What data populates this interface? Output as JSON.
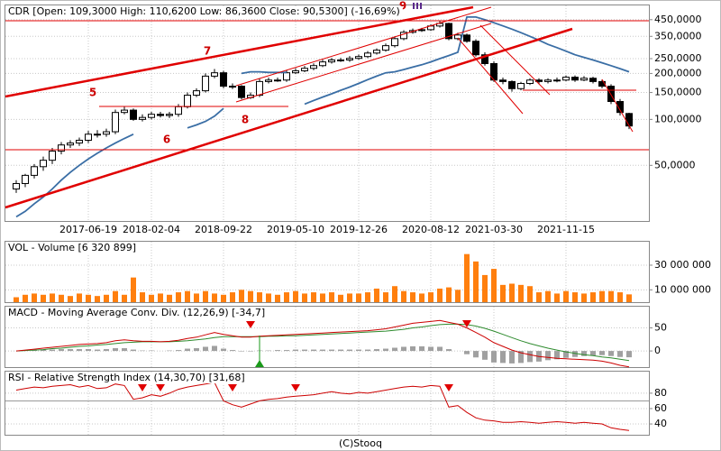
{
  "chart_data": [
    {
      "type": "candlestick",
      "title": "CDR [Open: 109,3000  High: 110,6200  Low: 86,3600  Close: 90,5300] (-16,69%)",
      "categories": [
        null,
        null,
        null,
        null,
        null,
        null,
        null,
        null,
        "2017-06-19",
        null,
        null,
        null,
        null,
        null,
        null,
        "2018-02-04",
        null,
        null,
        null,
        null,
        null,
        null,
        null,
        "2018-09-22",
        null,
        null,
        null,
        null,
        null,
        null,
        null,
        "2019-05-10",
        null,
        null,
        null,
        null,
        null,
        null,
        "2019-12-26",
        null,
        null,
        null,
        null,
        null,
        null,
        null,
        "2020-08-12",
        null,
        null,
        null,
        null,
        null,
        null,
        "2021-03-30",
        null,
        null,
        null,
        null,
        null,
        null,
        null,
        "2021-11-15",
        null,
        null,
        null,
        null,
        null,
        null,
        null
      ],
      "open": [
        35,
        38,
        43,
        49,
        54,
        62,
        68,
        70,
        73,
        80,
        80,
        83,
        111,
        115,
        100,
        103,
        108,
        106,
        108,
        121,
        144,
        154,
        192,
        202,
        165,
        165,
        139,
        144,
        177,
        181,
        181,
        202,
        208,
        216,
        225,
        238,
        245,
        245,
        251,
        258,
        272,
        284,
        304,
        338,
        372,
        382,
        387,
        409,
        425,
        338,
        357,
        325,
        265,
        232,
        181,
        177,
        159,
        172,
        181,
        177,
        181,
        181,
        189,
        181,
        186,
        177,
        165,
        131,
        109.3
      ],
      "high": [
        40,
        44,
        51,
        57,
        65,
        71,
        73,
        76,
        84,
        85,
        87,
        116,
        121,
        118,
        108,
        112,
        112,
        112,
        126,
        150,
        160,
        200,
        214,
        208,
        172,
        168,
        150,
        184,
        188,
        188,
        210,
        216,
        224,
        233,
        246,
        253,
        253,
        260,
        266,
        280,
        292,
        314,
        350,
        384,
        394,
        398,
        420,
        440,
        430,
        370,
        365,
        335,
        275,
        240,
        188,
        180,
        176,
        186,
        186,
        186,
        188,
        194,
        194,
        192,
        190,
        182,
        170,
        136,
        110.62
      ],
      "low": [
        33,
        36,
        41,
        46,
        51,
        59,
        65,
        67,
        70,
        76,
        77,
        80,
        108,
        98,
        97,
        100,
        103,
        102,
        104,
        118,
        140,
        150,
        186,
        160,
        158,
        135,
        136,
        140,
        172,
        176,
        176,
        198,
        204,
        210,
        220,
        232,
        238,
        238,
        246,
        252,
        266,
        278,
        296,
        330,
        364,
        374,
        380,
        400,
        330,
        330,
        318,
        258,
        225,
        176,
        170,
        152,
        155,
        168,
        170,
        172,
        175,
        178,
        176,
        178,
        172,
        160,
        126,
        106,
        86.36
      ],
      "close": [
        38,
        43,
        49,
        54,
        62,
        68,
        70,
        73,
        80,
        80,
        83,
        111,
        115,
        100,
        103,
        108,
        106,
        108,
        121,
        144,
        154,
        192,
        202,
        165,
        165,
        139,
        144,
        177,
        181,
        181,
        202,
        208,
        216,
        225,
        238,
        245,
        245,
        251,
        258,
        272,
        284,
        304,
        338,
        372,
        382,
        387,
        409,
        425,
        338,
        357,
        325,
        265,
        232,
        181,
        177,
        159,
        172,
        181,
        177,
        181,
        181,
        189,
        181,
        186,
        177,
        165,
        131,
        111,
        90.53
      ],
      "moving_average": {
        "color": "#3a6ea5",
        "values": [
          23,
          25,
          28,
          31,
          35,
          40,
          45,
          50,
          55,
          60,
          65,
          70,
          75,
          80,
          null,
          null,
          null,
          null,
          null,
          88,
          92,
          97,
          105,
          118,
          null,
          200,
          205,
          205,
          203,
          203,
          203,
          null,
          126,
          133,
          140,
          147,
          155,
          163,
          172,
          182,
          192,
          202,
          205,
          212,
          220,
          228,
          238,
          250,
          262,
          275,
          468,
          468,
          450,
          430,
          410,
          390,
          370,
          350,
          330,
          310,
          295,
          280,
          265,
          255,
          245,
          235,
          225,
          215,
          205
        ]
      },
      "up_color": "#ffffff",
      "down_color": "#000000",
      "annotations": [
        "5",
        "6",
        "7",
        "8",
        "9"
      ],
      "log_scale": true,
      "grid": true,
      "ylim": [
        21.6,
        558
      ],
      "yticks": [
        {
          "value": 50,
          "label": "50,0000"
        },
        {
          "value": 100,
          "label": "100,0000"
        },
        {
          "value": 150,
          "label": "150,0000"
        },
        {
          "value": 200,
          "label": "200,0000"
        },
        {
          "value": 250,
          "label": "250,0000"
        },
        {
          "value": 350,
          "label": "350,0000"
        },
        {
          "value": 450,
          "label": "450,0000"
        }
      ]
    },
    {
      "type": "bar",
      "title": "VOL - Volume [6 320 899]",
      "color": "#ff7f0e",
      "grid": true,
      "values": [
        4000000,
        6000000,
        7000000,
        6000000,
        7000000,
        6000000,
        5000000,
        7000000,
        6000000,
        5000000,
        6000000,
        9000000,
        6000000,
        20000000,
        8000000,
        6000000,
        7000000,
        6000000,
        8000000,
        9000000,
        7000000,
        9000000,
        7000000,
        6000000,
        8000000,
        10000000,
        9000000,
        8000000,
        7000000,
        6000000,
        8000000,
        9000000,
        7000000,
        8000000,
        7000000,
        8000000,
        6000000,
        7000000,
        7000000,
        8000000,
        11000000,
        8000000,
        13000000,
        9000000,
        8000000,
        7000000,
        8000000,
        11000000,
        12000000,
        10000000,
        39000000,
        33000000,
        22000000,
        27000000,
        14000000,
        15000000,
        14000000,
        13000000,
        8000000,
        9000000,
        7000000,
        9000000,
        8000000,
        7000000,
        8000000,
        9000000,
        9000000,
        8000000,
        6320899
      ],
      "ylim": [
        0,
        49000000
      ],
      "yticks": [
        {
          "value": 10000000,
          "label": "10 000 000"
        },
        {
          "value": 30000000,
          "label": "30 000 000"
        }
      ]
    },
    {
      "type": "macd",
      "title": "MACD - Moving Average Conv. Div. (12,26,9) [-34,7]",
      "grid": true,
      "macd": {
        "color": "#cc0000",
        "values": [
          0,
          2,
          4,
          6,
          8,
          10,
          12,
          14,
          15,
          16,
          18,
          22,
          24,
          22,
          21,
          21,
          20,
          21,
          23,
          27,
          30,
          35,
          40,
          36,
          33,
          30,
          30,
          32,
          33,
          34,
          35,
          36,
          37,
          38,
          39,
          40,
          41,
          42,
          43,
          44,
          46,
          48,
          52,
          56,
          60,
          62,
          64,
          66,
          62,
          58,
          50,
          40,
          30,
          18,
          10,
          2,
          -4,
          -8,
          -12,
          -14,
          -16,
          -17,
          -18,
          -19,
          -20,
          -22,
          -26,
          -31,
          -34.7
        ]
      },
      "signal": {
        "color": "#2e8b2e",
        "values": [
          0,
          1,
          2,
          3,
          5,
          6,
          8,
          10,
          11,
          13,
          14,
          16,
          18,
          19,
          20,
          20,
          20,
          20,
          21,
          22,
          24,
          26,
          29,
          31,
          31,
          31,
          31,
          31,
          32,
          32,
          33,
          33,
          34,
          35,
          36,
          37,
          38,
          39,
          40,
          41,
          42,
          43,
          45,
          47,
          50,
          52,
          55,
          57,
          58,
          58,
          57,
          54,
          49,
          43,
          36,
          29,
          22,
          16,
          11,
          6,
          2,
          -2,
          -5,
          -8,
          -10,
          -13,
          -15,
          -18,
          -21
        ]
      },
      "histogram": {
        "color": "#a0a0a0",
        "values": [
          0,
          1,
          2,
          3,
          3,
          4,
          4,
          4,
          4,
          3,
          4,
          6,
          6,
          3,
          1,
          1,
          0,
          1,
          2,
          5,
          6,
          9,
          11,
          5,
          2,
          -1,
          -1,
          1,
          1,
          2,
          2,
          3,
          3,
          3,
          3,
          3,
          3,
          3,
          3,
          3,
          4,
          5,
          7,
          9,
          10,
          10,
          9,
          9,
          4,
          0,
          -7,
          -14,
          -19,
          -25,
          -26,
          -27,
          -26,
          -24,
          -23,
          -20,
          -18,
          -15,
          -13,
          -11,
          -10,
          -9,
          -11,
          -13,
          -13.7
        ]
      },
      "ylim": [
        -35,
        96
      ],
      "yticks": [
        0,
        50
      ]
    },
    {
      "type": "line",
      "title": "RSI - Relative Strength Index (14,30,70) [31,68]",
      "color": "#cc0000",
      "grid": true,
      "values": [
        84,
        86,
        88,
        87,
        89,
        90,
        91,
        88,
        90,
        86,
        87,
        92,
        90,
        72,
        74,
        78,
        76,
        80,
        85,
        88,
        90,
        92,
        94,
        70,
        65,
        62,
        66,
        70,
        72,
        73,
        75,
        76,
        77,
        78,
        80,
        82,
        80,
        79,
        81,
        80,
        82,
        84,
        86,
        88,
        89,
        88,
        90,
        89,
        62,
        64,
        55,
        48,
        45,
        44,
        42,
        42,
        43,
        42,
        41,
        42,
        43,
        42,
        41,
        42,
        41,
        40,
        35,
        33,
        31.68
      ],
      "hlines": [
        70
      ],
      "ylim": [
        26,
        108
      ],
      "yticks": [
        40,
        60,
        80
      ]
    }
  ],
  "footer": "(C)Stooq"
}
